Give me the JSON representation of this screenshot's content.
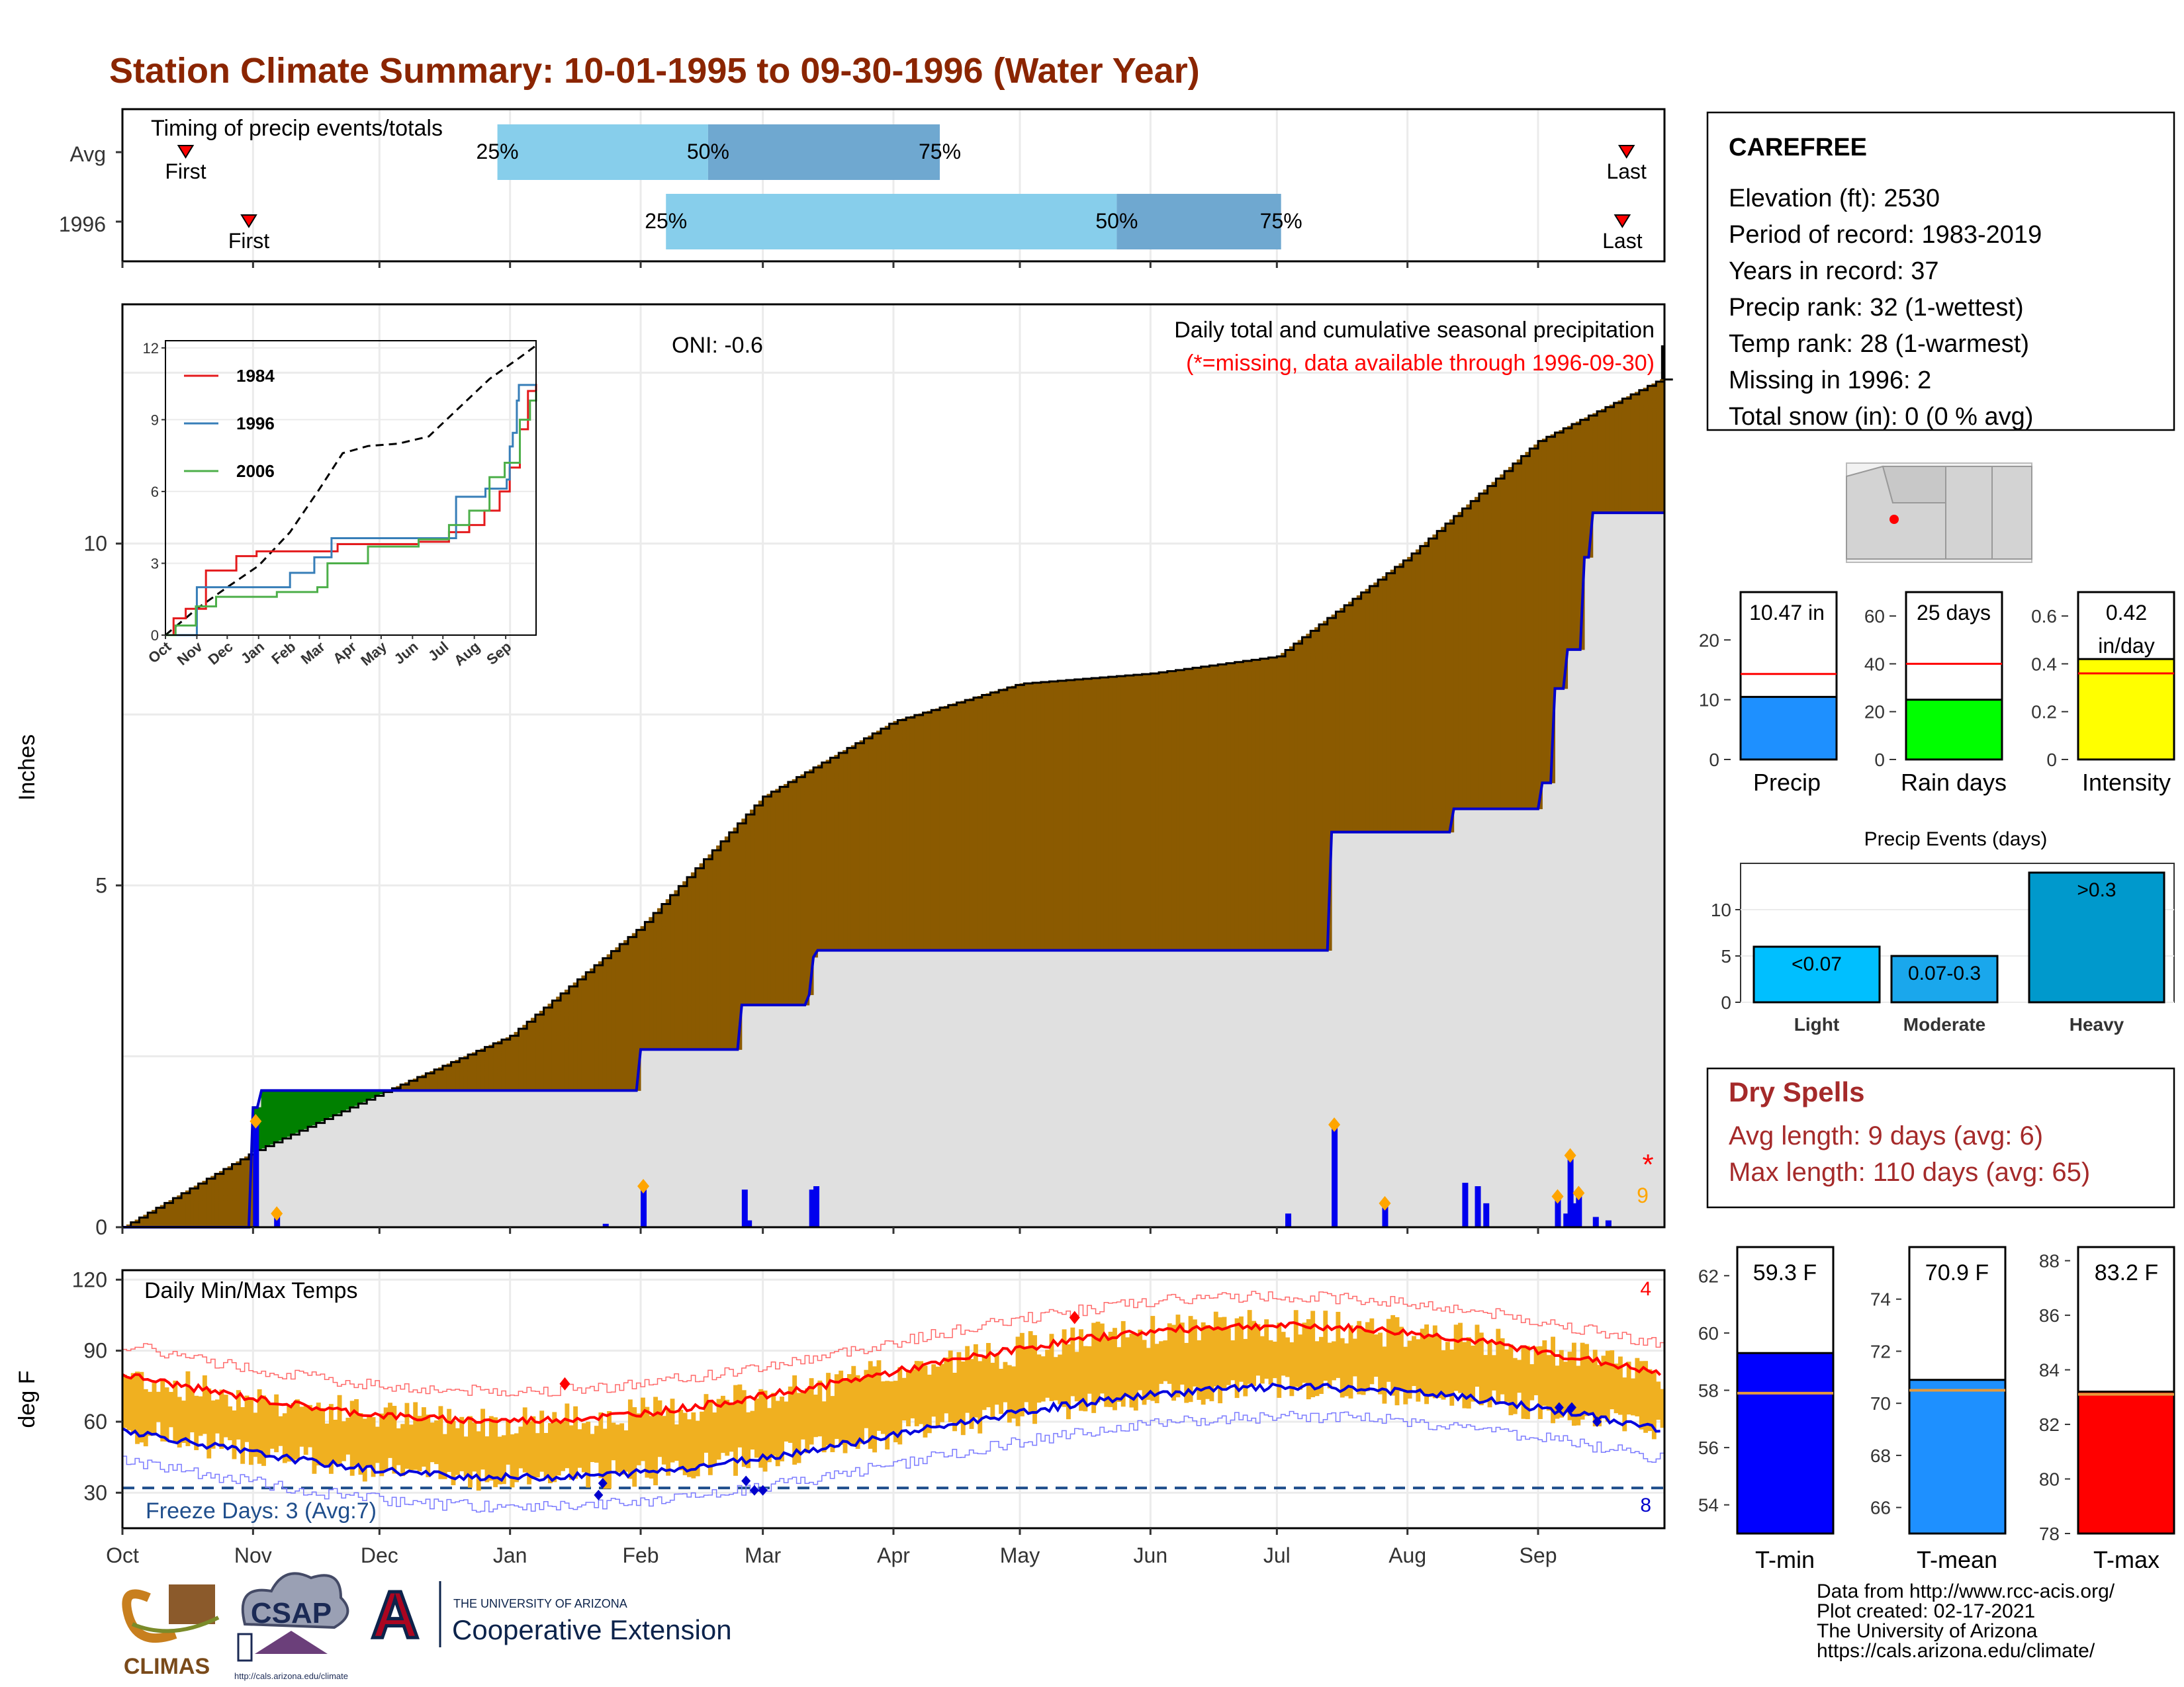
{
  "title": "Station Climate Summary: 10-01-1995 to 09-30-1996 (Water Year)",
  "timing": {
    "label": "Timing of precip events/totals",
    "rows": [
      {
        "name": "Avg",
        "first_day": 15,
        "p25_day": 89,
        "p50_day": 139,
        "p75_day": 194,
        "last_day": 357
      },
      {
        "name": "1996",
        "first_day": 30,
        "p25_day": 129,
        "p50_day": 236,
        "p75_day": 275,
        "last_day": 356
      }
    ],
    "first_label": "First",
    "last_label": "Last",
    "p25_label": "25%",
    "p50_label": "50%",
    "p75_label": "75%"
  },
  "main": {
    "oni": "ONI: -0.6",
    "legend_title": "Daily total and cumulative seasonal precipitation",
    "missing_note": "(*=missing, data available through 1996-09-30)",
    "missing_mark": "*",
    "missing_count": "9",
    "y_label": "Inches",
    "y_ticks": [
      0,
      5,
      10
    ],
    "y_max": 13.5
  },
  "inset": {
    "y_ticks": [
      0,
      3,
      6,
      9,
      12
    ],
    "x_labels": [
      "Oct",
      "Nov",
      "Dec",
      "Jan",
      "Feb",
      "Mar",
      "Apr",
      "May",
      "Jun",
      "Jul",
      "Aug",
      "Sep"
    ],
    "series": [
      {
        "name": "1984",
        "color": "#E41A1C"
      },
      {
        "name": "1996",
        "color": "#377EB8"
      },
      {
        "name": "2006",
        "color": "#4DAF4A"
      }
    ]
  },
  "temps": {
    "title": "Daily Min/Max Temps",
    "y_label": "deg F",
    "y_ticks": [
      30,
      60,
      90,
      120
    ],
    "freeze_text": "Freeze Days: 3 (Avg:7)",
    "count_high": "4",
    "count_low": "8"
  },
  "months": [
    "Oct",
    "Nov",
    "Dec",
    "Jan",
    "Feb",
    "Mar",
    "Apr",
    "May",
    "Jun",
    "Jul",
    "Aug",
    "Sep"
  ],
  "station": {
    "name": "CAREFREE",
    "lines": [
      "Elevation (ft): 2530",
      "Period of record: 1983-2019",
      "Years in record: 37",
      "Precip rank: 32 (1-wettest)",
      "Temp rank: 28 (1-warmest)",
      "Missing in 1996: 2",
      "Total snow (in): 0 (0 % avg)"
    ]
  },
  "bars_top": [
    {
      "label": "Precip",
      "value_text": "10.47 in",
      "value": 10.47,
      "avg": 14.3,
      "ymax": 28,
      "ticks": [
        0,
        10,
        20
      ],
      "color": "#1E90FF"
    },
    {
      "label": "Rain days",
      "value_text": "25 days",
      "value": 25,
      "avg": 40,
      "ymax": 70,
      "ticks": [
        0,
        20,
        40,
        60
      ],
      "color": "#00FF00"
    },
    {
      "label": "Intensity",
      "value_text": "0.42 in/day",
      "value": 0.42,
      "avg": 0.36,
      "ymax": 0.7,
      "ticks": [
        0.0,
        0.2,
        0.4,
        0.6
      ],
      "color": "#FFFF00"
    }
  ],
  "events": {
    "title": "Precip Events (days)",
    "ticks": [
      0,
      5,
      10
    ],
    "ymax": 15,
    "bars": [
      {
        "label": "Light",
        "inner": "<0.07",
        "value": 6,
        "color": "#00BFFF"
      },
      {
        "label": "Moderate",
        "inner": "0.07-0.3",
        "value": 5,
        "color": "#1AA7EC"
      },
      {
        "label": "Heavy",
        "inner": ">0.3",
        "value": 14,
        "color": "#0099CC"
      }
    ]
  },
  "dry_spells": {
    "title": "Dry Spells",
    "avg_text": "Avg length: 9 days (avg: 6)",
    "max_text": "Max length: 110 days (avg: 65)"
  },
  "temp_bars": [
    {
      "label": "T-min",
      "value_text": "59.3 F",
      "value": 59.3,
      "avg": 57.9,
      "ymin": 53,
      "ymax": 63,
      "ticks": [
        54,
        56,
        58,
        60,
        62
      ],
      "color": "#0000FF"
    },
    {
      "label": "T-mean",
      "value_text": "70.9 F",
      "value": 70.9,
      "avg": 70.5,
      "ymin": 65,
      "ymax": 76,
      "ticks": [
        66,
        68,
        70,
        72,
        74
      ],
      "color": "#1E90FF"
    },
    {
      "label": "T-max",
      "value_text": "83.2 F",
      "value": 83.2,
      "avg": 83.1,
      "ymin": 78,
      "ymax": 88.5,
      "ticks": [
        78,
        80,
        82,
        84,
        86,
        88
      ],
      "color": "#FF0000"
    }
  ],
  "footer": [
    "Data from http://www.rcc-acis.org/",
    "Plot created: 02-17-2021",
    "The University of Arizona",
    "https://cals.arizona.edu/climate/"
  ],
  "logos": {
    "climas": "CLIMAS",
    "csap": "CSAP",
    "csap_url": "http://cals.arizona.edu/climate",
    "ua_small": "THE UNIVERSITY OF ARIZONA",
    "coop": "Cooperative Extension",
    "ua_letter": "A"
  },
  "colors": {
    "brown": "#8B5A00",
    "green": "#008000",
    "gray_fill": "#E0E0E0",
    "blue_line": "#0000CC",
    "orange": "#FFA500",
    "bar_light": "#87CEEB",
    "bar_dark": "#6FA8D0",
    "temp_bar": "#F0B020",
    "red": "#FF0000",
    "text_red": "#A52A2A"
  }
}
